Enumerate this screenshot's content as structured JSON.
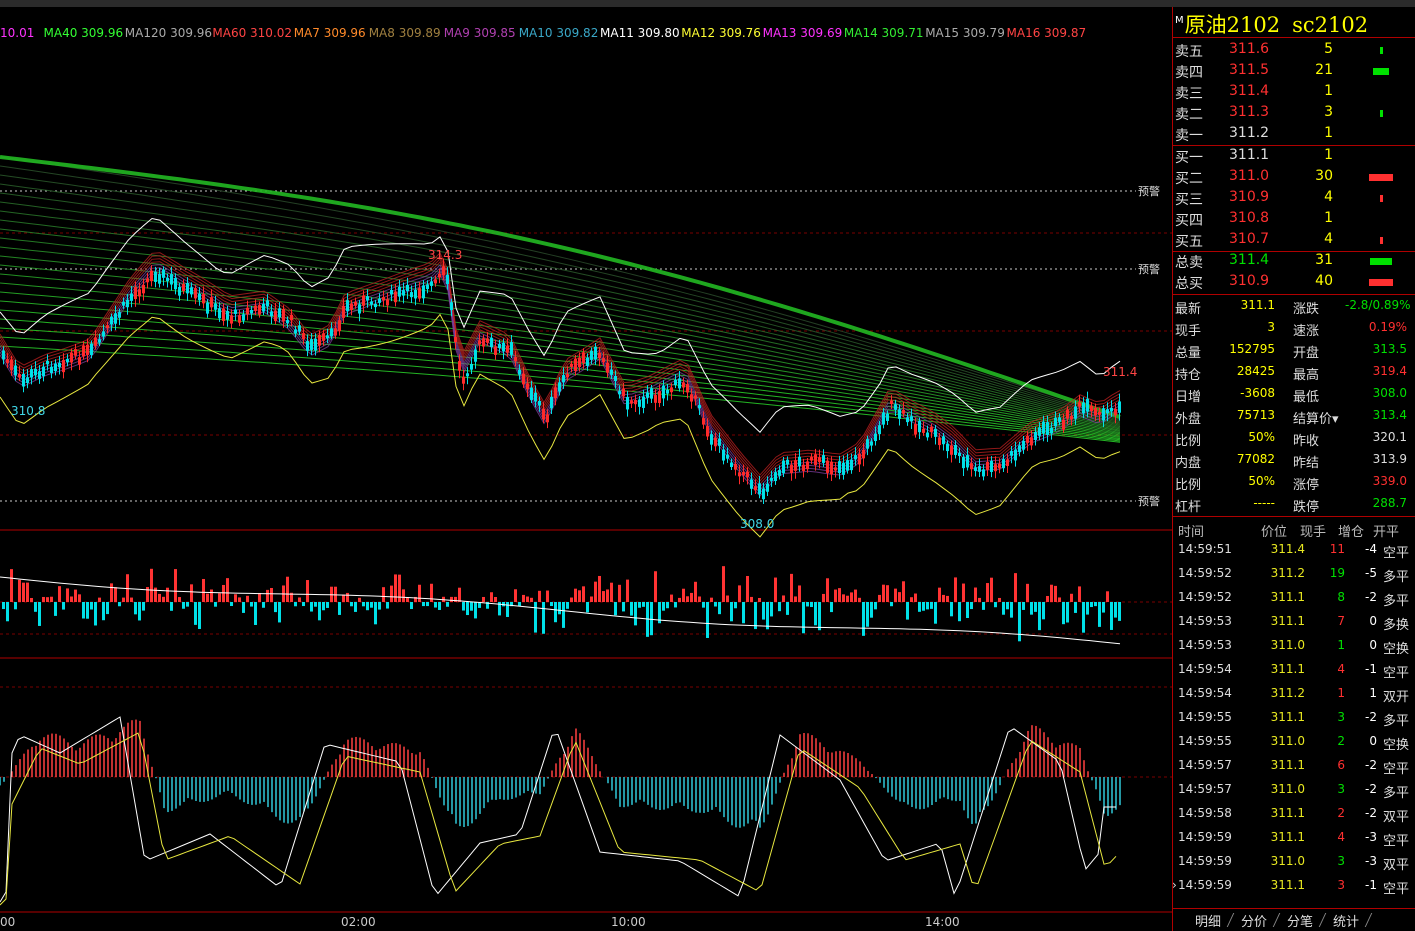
{
  "ma_legend": [
    {
      "text": "10.01",
      "color": "#ff33ff"
    },
    {
      "text": "MA40 309.96",
      "color": "#33ff33"
    },
    {
      "text": "MA120 309.96",
      "color": "#aaaaaa"
    },
    {
      "text": "MA60 310.02",
      "color": "#ff4444"
    },
    {
      "text": "MA7 309.96",
      "color": "#ff8a2a"
    },
    {
      "text": "MA8 309.89",
      "color": "#a08040"
    },
    {
      "text": "MA9 309.85",
      "color": "#b040b0"
    },
    {
      "text": "MA10 309.82",
      "color": "#3aa8c8"
    },
    {
      "text": "MA11 309.80",
      "color": "#ffffff"
    },
    {
      "text": "MA12 309.76",
      "color": "#ffff33"
    },
    {
      "text": "MA13 309.69",
      "color": "#ff33ff"
    },
    {
      "text": "MA14 309.71",
      "color": "#33ee33"
    },
    {
      "text": "MA15 309.79",
      "color": "#aaaaaa"
    },
    {
      "text": "MA16 309.87",
      "color": "#ff4444"
    }
  ],
  "price_chart": {
    "high_label": "314.3",
    "low_label": "308.0",
    "left_low_label": "310.8",
    "last_high_label": "311.4",
    "alert_label": "预警"
  },
  "x_axis": [
    "00",
    "02:00",
    "10:00",
    "14:00"
  ],
  "panel": {
    "marker": "M",
    "name": "原油2102",
    "code": "sc2102",
    "asks": [
      {
        "label": "卖五",
        "price": "311.6",
        "vol": "5",
        "bar": 0.1
      },
      {
        "label": "卖四",
        "price": "311.5",
        "vol": "21",
        "bar": 0.55
      },
      {
        "label": "卖三",
        "price": "311.4",
        "vol": "1",
        "bar": 0
      },
      {
        "label": "卖二",
        "price": "311.3",
        "vol": "3",
        "bar": 0.05
      },
      {
        "label": "卖一",
        "price": "311.2",
        "vol": "1",
        "bar": 0
      }
    ],
    "bids": [
      {
        "label": "买一",
        "price": "311.1",
        "vol": "1",
        "bar": 0
      },
      {
        "label": "买二",
        "price": "311.0",
        "vol": "30",
        "bar": 0.8
      },
      {
        "label": "买三",
        "price": "310.9",
        "vol": "4",
        "bar": 0.08
      },
      {
        "label": "买四",
        "price": "310.8",
        "vol": "1",
        "bar": 0
      },
      {
        "label": "买五",
        "price": "310.7",
        "vol": "4",
        "bar": 0.08
      }
    ],
    "totals": [
      {
        "label": "总卖",
        "price": "311.4",
        "vol": "31",
        "bar": 0.72,
        "color": "#00e000"
      },
      {
        "label": "总买",
        "price": "310.9",
        "vol": "40",
        "bar": 0.82,
        "color": "#ff3030"
      }
    ],
    "stats": [
      {
        "l": "最新",
        "lv": "311.1",
        "r": "涨跌",
        "rv": "-2.8/0.89%",
        "rc": "dn"
      },
      {
        "l": "现手",
        "lv": "3",
        "r": "速涨",
        "rv": "0.19%",
        "rc": "up"
      },
      {
        "l": "总量",
        "lv": "152795",
        "r": "开盘",
        "rv": "313.5",
        "rc": "dn"
      },
      {
        "l": "持仓",
        "lv": "28425",
        "r": "最高",
        "rv": "319.4",
        "rc": "up"
      },
      {
        "l": "日增",
        "lv": "-3608",
        "r": "最低",
        "rv": "308.0",
        "rc": "dn"
      },
      {
        "l": "外盘",
        "lv": "75713",
        "r": "结算价▾",
        "rv": "313.4",
        "rc": "dn"
      },
      {
        "l": "比例",
        "lv": "50%",
        "r": "昨收",
        "rv": "320.1",
        "rc": "fl"
      },
      {
        "l": "内盘",
        "lv": "77082",
        "r": "昨结",
        "rv": "313.9",
        "rc": "fl"
      },
      {
        "l": "比例",
        "lv": "50%",
        "r": "涨停",
        "rv": "339.0",
        "rc": "up"
      },
      {
        "l": "杠杆",
        "lv": "-----",
        "r": "跌停",
        "rv": "288.7",
        "rc": "dn"
      }
    ],
    "tick_headers": [
      "时间",
      "价位",
      "现手",
      "增仓",
      "开平"
    ],
    "ticks": [
      {
        "t": "14:59:51",
        "p": "311.4",
        "v": "11",
        "vc": "up",
        "c": "-4",
        "k": "空平"
      },
      {
        "t": "14:59:52",
        "p": "311.2",
        "v": "19",
        "vc": "dn",
        "c": "-5",
        "k": "多平"
      },
      {
        "t": "14:59:52",
        "p": "311.1",
        "v": "8",
        "vc": "dn",
        "c": "-2",
        "k": "多平"
      },
      {
        "t": "14:59:53",
        "p": "311.1",
        "v": "7",
        "vc": "up",
        "c": "0",
        "k": "多换"
      },
      {
        "t": "14:59:53",
        "p": "311.0",
        "v": "1",
        "vc": "dn",
        "c": "0",
        "k": "空换"
      },
      {
        "t": "14:59:54",
        "p": "311.1",
        "v": "4",
        "vc": "up",
        "c": "-1",
        "k": "空平"
      },
      {
        "t": "14:59:54",
        "p": "311.2",
        "v": "1",
        "vc": "up",
        "c": "1",
        "k": "双开"
      },
      {
        "t": "14:59:55",
        "p": "311.1",
        "v": "3",
        "vc": "dn",
        "c": "-2",
        "k": "多平"
      },
      {
        "t": "14:59:55",
        "p": "311.0",
        "v": "2",
        "vc": "dn",
        "c": "0",
        "k": "空换"
      },
      {
        "t": "14:59:57",
        "p": "311.1",
        "v": "6",
        "vc": "up",
        "c": "-2",
        "k": "空平"
      },
      {
        "t": "14:59:57",
        "p": "311.0",
        "v": "3",
        "vc": "dn",
        "c": "-2",
        "k": "多平"
      },
      {
        "t": "14:59:58",
        "p": "311.1",
        "v": "2",
        "vc": "up",
        "c": "-2",
        "k": "双平"
      },
      {
        "t": "14:59:59",
        "p": "311.1",
        "v": "4",
        "vc": "up",
        "c": "-3",
        "k": "空平"
      },
      {
        "t": "14:59:59",
        "p": "311.0",
        "v": "3",
        "vc": "dn",
        "c": "-3",
        "k": "双平"
      },
      {
        "t": "14:59:59",
        "p": "311.1",
        "v": "3",
        "vc": "up",
        "c": "-1",
        "k": "空平"
      }
    ],
    "tabs": [
      "明细",
      "分价",
      "分笔",
      "统计"
    ]
  }
}
